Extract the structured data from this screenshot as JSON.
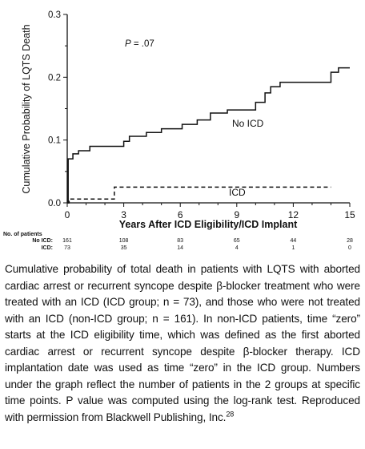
{
  "chart_data": {
    "type": "line",
    "title": "",
    "xlabel": "Years After ICD Eligibility/ICD Implant",
    "ylabel": "Cumulative Probability of LQTS Death",
    "xlim": [
      0,
      15
    ],
    "ylim": [
      0,
      0.3
    ],
    "x_ticks": [
      0,
      3,
      6,
      9,
      12,
      15
    ],
    "y_ticks": [
      0.0,
      0.1,
      0.2,
      0.3
    ],
    "x_tick_labels": [
      "0",
      "3",
      "6",
      "9",
      "12",
      "15"
    ],
    "y_tick_labels": [
      "0.0",
      "0.1",
      "0.2",
      "0.3"
    ],
    "grid": false,
    "annotation": "P = .07",
    "series": [
      {
        "name": "No ICD",
        "style": "solid",
        "step_points": [
          [
            0,
            0
          ],
          [
            0.05,
            0.07
          ],
          [
            0.3,
            0.078
          ],
          [
            0.6,
            0.083
          ],
          [
            1.2,
            0.09
          ],
          [
            3.0,
            0.098
          ],
          [
            3.3,
            0.106
          ],
          [
            4.2,
            0.112
          ],
          [
            5.0,
            0.118
          ],
          [
            6.1,
            0.125
          ],
          [
            6.9,
            0.132
          ],
          [
            7.6,
            0.143
          ],
          [
            8.5,
            0.148
          ],
          [
            10.0,
            0.16
          ],
          [
            10.5,
            0.175
          ],
          [
            10.8,
            0.185
          ],
          [
            11.3,
            0.192
          ],
          [
            14.0,
            0.208
          ],
          [
            14.4,
            0.215
          ],
          [
            15.0,
            0.215
          ]
        ]
      },
      {
        "name": "ICD",
        "style": "dashed",
        "step_points": [
          [
            0,
            0
          ],
          [
            0.1,
            0.006
          ],
          [
            2.5,
            0.025
          ],
          [
            14.0,
            0.025
          ]
        ]
      }
    ],
    "risk_table": {
      "header": "No. of patients",
      "rows": [
        {
          "label": "No ICD:",
          "values": [
            "161",
            "108",
            "83",
            "65",
            "44",
            "28"
          ]
        },
        {
          "label": "ICD:",
          "values": [
            "73",
            "35",
            "14",
            "4",
            "1",
            "0"
          ]
        }
      ]
    }
  },
  "caption": {
    "text": "Cumulative probability of total death in patients with LQTS with aborted cardiac arrest or recurrent syncope despite β-blocker treatment who were treated with an ICD (ICD group; n = 73), and those who were not treated with an ICD (non-ICD group; n = 161). In non-ICD patients, time “zero” starts at the ICD eligibility time, which was defined as the first aborted cardiac arrest or recurrent syncope despite β-blocker therapy. ICD implantation date was used as time “zero” in the ICD group. Numbers under the graph reflect the number of patients in the 2 groups at specific time points. P value was computed using the log-rank test. Reproduced with permission from Blackwell Publishing, Inc.",
    "ref": "28"
  }
}
